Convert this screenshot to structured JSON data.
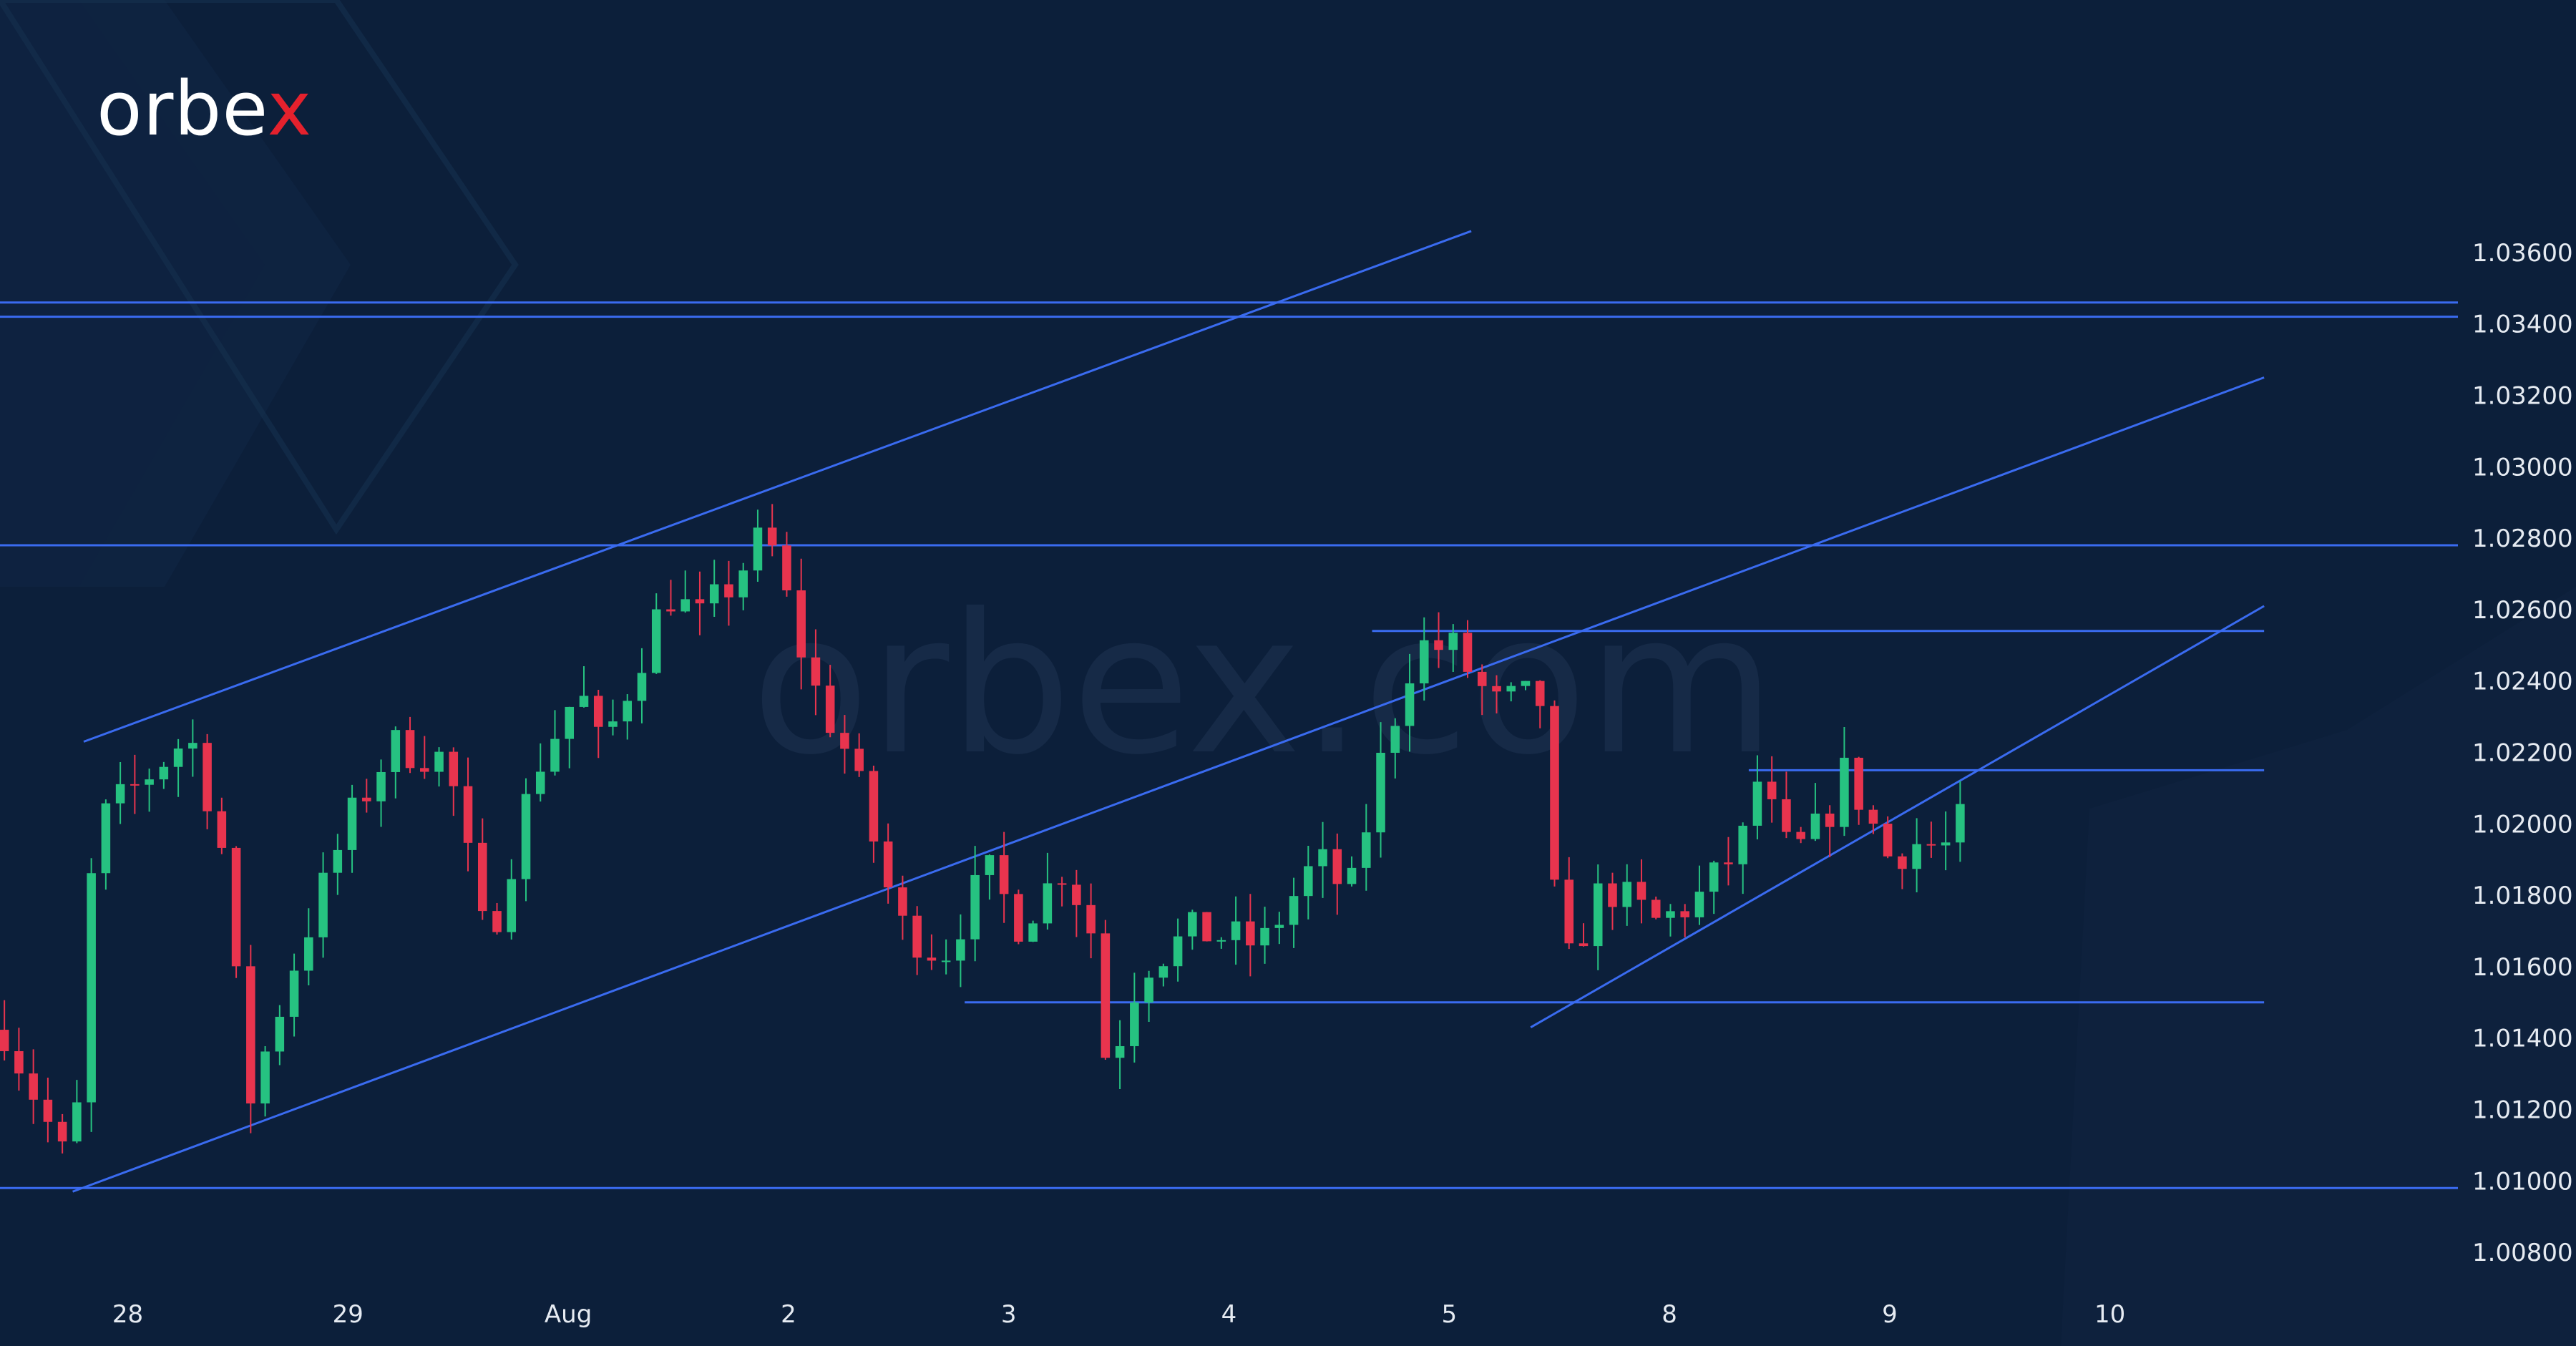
{
  "brand": {
    "name": "orbex",
    "logo_main": "orbe",
    "logo_accent": "x",
    "accent_color": "#e5212d",
    "watermark": "orbex.com"
  },
  "colors": {
    "background": "#0c1f3a",
    "up": "#26c281",
    "down": "#e8344e",
    "lines": "#3a6bf0",
    "text": "#e6ebf2"
  },
  "chart_data": {
    "type": "candlestick",
    "instrument": "",
    "ylim": [
      1.007,
      1.0375
    ],
    "yticks": [
      "1.03600",
      "1.03400",
      "1.03200",
      "1.03000",
      "1.02800",
      "1.02600",
      "1.02400",
      "1.02200",
      "1.02000",
      "1.01800",
      "1.01600",
      "1.01400",
      "1.01200",
      "1.01000",
      "1.00800"
    ],
    "ytick_values": [
      1.036,
      1.034,
      1.032,
      1.03,
      1.028,
      1.026,
      1.024,
      1.022,
      1.02,
      1.018,
      1.016,
      1.014,
      1.012,
      1.01,
      1.008
    ],
    "xlim": [
      -0.58,
      10.58
    ],
    "xticks": [
      "28",
      "29",
      "Aug",
      "2",
      "3",
      "4",
      "5",
      "8",
      "9",
      "10"
    ],
    "xtick_positions": [
      0,
      1,
      2,
      3,
      4,
      5,
      6,
      7,
      8,
      9
    ],
    "horizontal_lines": [
      1.0346,
      1.0342,
      1.0278,
      1.0098
    ],
    "horizontal_segments": [
      {
        "x1": 5.65,
        "x2": 9.7,
        "y": 1.0254
      },
      {
        "x1": 7.36,
        "x2": 9.7,
        "y": 1.0215
      },
      {
        "x1": 3.8,
        "x2": 9.7,
        "y": 1.015
      }
    ],
    "trendlines": [
      {
        "x1": -0.2,
        "y1": 1.0223,
        "x2": 6.1,
        "y2": 1.0366
      },
      {
        "x1": -0.25,
        "y1": 1.0097,
        "x2": 9.7,
        "y2": 1.0325
      },
      {
        "x1": 6.37,
        "y1": 1.0143,
        "x2": 9.7,
        "y2": 1.0261
      }
    ],
    "anchors": [
      [
        -0.58,
        1.0145
      ],
      [
        -0.25,
        1.0101
      ],
      [
        -0.15,
        1.0199
      ],
      [
        0.28,
        1.0225
      ],
      [
        0.42,
        1.0197
      ],
      [
        0.55,
        1.0122
      ],
      [
        0.75,
        1.016
      ],
      [
        1.0,
        1.02
      ],
      [
        1.2,
        1.0222
      ],
      [
        1.45,
        1.0218
      ],
      [
        1.63,
        1.0165
      ],
      [
        1.85,
        1.0215
      ],
      [
        2.05,
        1.0238
      ],
      [
        2.15,
        1.022
      ],
      [
        2.45,
        1.0265
      ],
      [
        2.6,
        1.0257
      ],
      [
        2.75,
        1.0268
      ],
      [
        2.9,
        1.0282
      ],
      [
        3.1,
        1.024
      ],
      [
        3.28,
        1.0218
      ],
      [
        3.5,
        1.0172
      ],
      [
        3.7,
        1.0163
      ],
      [
        3.9,
        1.0187
      ],
      [
        4.05,
        1.0172
      ],
      [
        4.25,
        1.0188
      ],
      [
        4.37,
        1.0172
      ],
      [
        4.45,
        1.013
      ],
      [
        4.6,
        1.016
      ],
      [
        4.85,
        1.017
      ],
      [
        5.15,
        1.0166
      ],
      [
        5.4,
        1.019
      ],
      [
        5.55,
        1.018
      ],
      [
        5.7,
        1.022
      ],
      [
        5.85,
        1.025
      ],
      [
        6.02,
        1.0249
      ],
      [
        6.2,
        1.0233
      ],
      [
        6.35,
        1.0235
      ],
      [
        6.43,
        1.0234
      ],
      [
        6.5,
        1.0155
      ],
      [
        6.7,
        1.0183
      ],
      [
        6.95,
        1.0172
      ],
      [
        7.15,
        1.018
      ],
      [
        7.33,
        1.0195
      ],
      [
        7.4,
        1.0212
      ],
      [
        7.55,
        1.019
      ],
      [
        7.7,
        1.02
      ],
      [
        7.8,
        1.0215
      ],
      [
        8.0,
        1.019
      ],
      [
        8.1,
        1.0195
      ],
      [
        8.25,
        1.0193
      ],
      [
        8.37,
        1.0205
      ]
    ],
    "candle_count": 136,
    "first_candle_x": -0.56,
    "last_candle_x": 8.32
  }
}
